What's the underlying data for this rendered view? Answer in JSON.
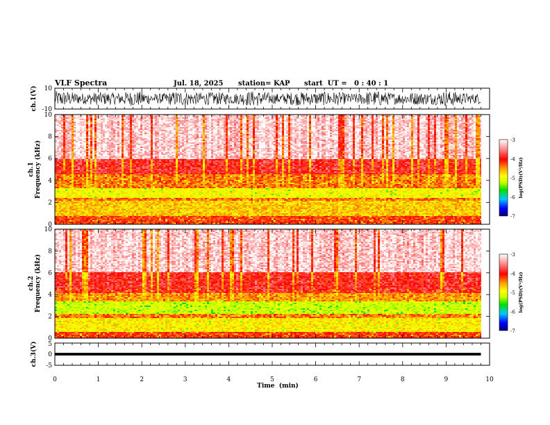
{
  "chart_data": {
    "type": "heatmap",
    "title": "VLF Spectra",
    "header": {
      "date": "Jul. 18, 2025",
      "station": "station= KAP",
      "start_ut": "start  UT =   0 : 40 : 1"
    },
    "x_axis": {
      "label": "Time  (min)",
      "range": [
        0,
        10
      ],
      "ticks": [
        "0",
        "1",
        "2",
        "3",
        "4",
        "5",
        "6",
        "7",
        "8",
        "9",
        "10"
      ],
      "data_end": 9.8
    },
    "panels": [
      {
        "name": "ch1-waveform",
        "type": "line",
        "ylabel": "ch.1(V)",
        "ylim": [
          -10,
          10
        ],
        "yticks": [
          "10",
          "-10"
        ],
        "amplitude_envelope": [
          -8,
          9
        ]
      },
      {
        "name": "ch1-spectrogram",
        "type": "heatmap",
        "ylabel_top": "ch.1",
        "ylabel": "Frequency  (kHz)",
        "ylim": [
          0,
          10
        ],
        "yticks": [
          "0",
          "2",
          "4",
          "6",
          "8",
          "10"
        ],
        "bands_khz": [
          {
            "from": 0,
            "to": 0.8,
            "level": -4.0
          },
          {
            "from": 0.8,
            "to": 2.1,
            "level": -4.5
          },
          {
            "from": 2.1,
            "to": 2.4,
            "level": -4.2
          },
          {
            "from": 2.4,
            "to": 3.3,
            "level": -4.8
          },
          {
            "from": 3.3,
            "to": 4.5,
            "level": -4.2
          },
          {
            "from": 4.5,
            "to": 6.0,
            "level": -3.8
          },
          {
            "from": 6.0,
            "to": 10.0,
            "level": -3.2
          }
        ]
      },
      {
        "name": "ch2-spectrogram",
        "type": "heatmap",
        "ylabel_top": "ch.2",
        "ylabel": "Frequency  (kHz)",
        "ylim": [
          0,
          10
        ],
        "yticks": [
          "0",
          "2",
          "4",
          "6",
          "8",
          "10"
        ],
        "bands_khz": [
          {
            "from": 0,
            "to": 0.6,
            "level": -4.0
          },
          {
            "from": 0.6,
            "to": 1.8,
            "level": -4.7
          },
          {
            "from": 1.8,
            "to": 2.2,
            "level": -4.2
          },
          {
            "from": 2.2,
            "to": 3.4,
            "level": -5.1
          },
          {
            "from": 3.4,
            "to": 4.2,
            "level": -4.3
          },
          {
            "from": 4.2,
            "to": 6.0,
            "level": -3.8
          },
          {
            "from": 6.0,
            "to": 10.0,
            "level": -3.2
          }
        ]
      },
      {
        "name": "ch3-waveform",
        "type": "line",
        "ylabel": "ch.3(V)",
        "ylim": [
          -5,
          5
        ],
        "yticks": [
          "5",
          "0",
          "-5"
        ],
        "amplitude_envelope": [
          -0.6,
          0.6
        ]
      }
    ],
    "colorbar": {
      "label": "log(PSD)(V²/Hz)",
      "range": [
        -7,
        -3
      ],
      "ticks": [
        "-3",
        "-4",
        "-5",
        "-6",
        "-7"
      ],
      "colors": [
        "#00007a",
        "#0000ff",
        "#00c8ff",
        "#00e000",
        "#c8ff00",
        "#ffff00",
        "#ffa000",
        "#ff0000",
        "#ff9090",
        "#ffffff"
      ]
    }
  }
}
